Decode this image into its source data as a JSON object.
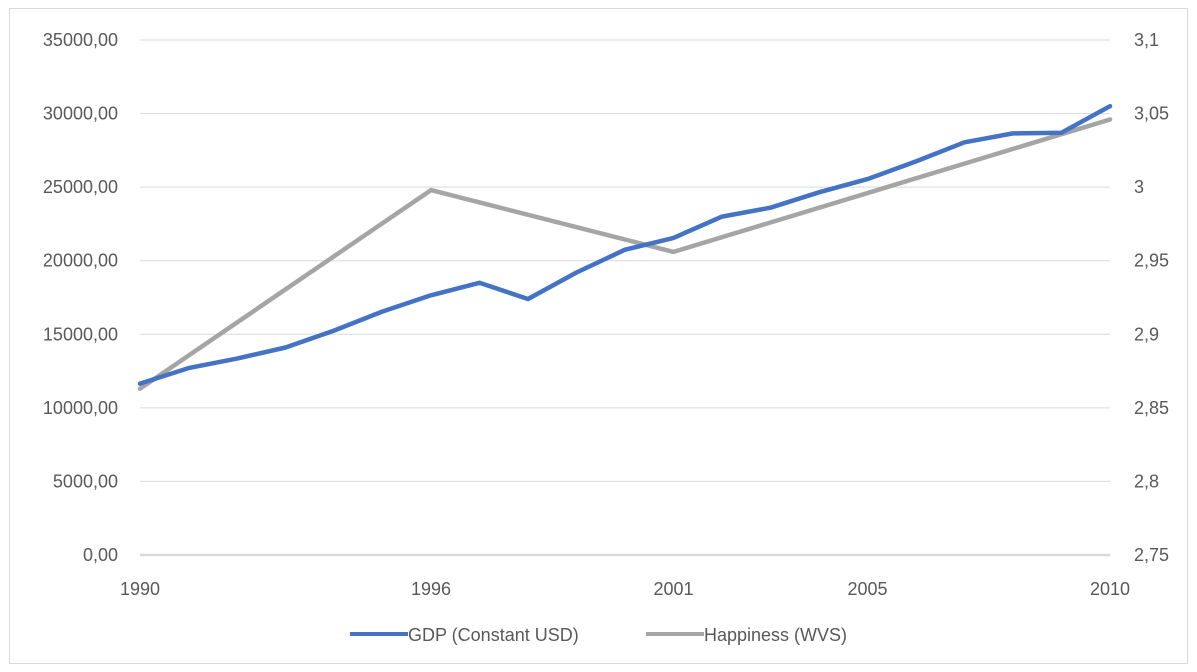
{
  "chart_data": {
    "type": "line",
    "title": "",
    "xlabel": "",
    "ylabel": "",
    "x_tick_labels": [
      "1990",
      "1996",
      "2001",
      "2005",
      "2010"
    ],
    "y_left": {
      "min": 0,
      "max": 35000,
      "step": 5000,
      "tick_labels": [
        "0,00",
        "5000,00",
        "10000,00",
        "15000,00",
        "20000,00",
        "25000,00",
        "30000,00",
        "35000,00"
      ]
    },
    "y_right": {
      "min": 2.75,
      "max": 3.1,
      "step": 0.05,
      "tick_labels": [
        "2,75",
        "2,8",
        "2,85",
        "2,9",
        "2,95",
        "3",
        "3,05",
        "3,1"
      ]
    },
    "grid": "horizontal",
    "legend_position": "bottom",
    "series": [
      {
        "name": "GDP (Constant USD)",
        "axis": "left",
        "color": "#4472c4",
        "x": [
          1990,
          1991,
          1992,
          1993,
          1994,
          1995,
          1996,
          1997,
          1998,
          1999,
          2000,
          2001,
          2002,
          2003,
          2004,
          2005,
          2006,
          2007,
          2008,
          2009,
          2010
        ],
        "values": [
          11650,
          12700,
          13350,
          14100,
          15250,
          16550,
          17650,
          18500,
          17400,
          19200,
          20750,
          21550,
          23000,
          23600,
          24650,
          25550,
          26750,
          28050,
          28650,
          28700,
          30500
        ]
      },
      {
        "name": "Happiness (WVS)",
        "axis": "right",
        "color": "#a5a5a5",
        "x": [
          1990,
          1996,
          2001,
          2010
        ],
        "values": [
          2.863,
          2.998,
          2.956,
          3.046
        ]
      }
    ]
  }
}
